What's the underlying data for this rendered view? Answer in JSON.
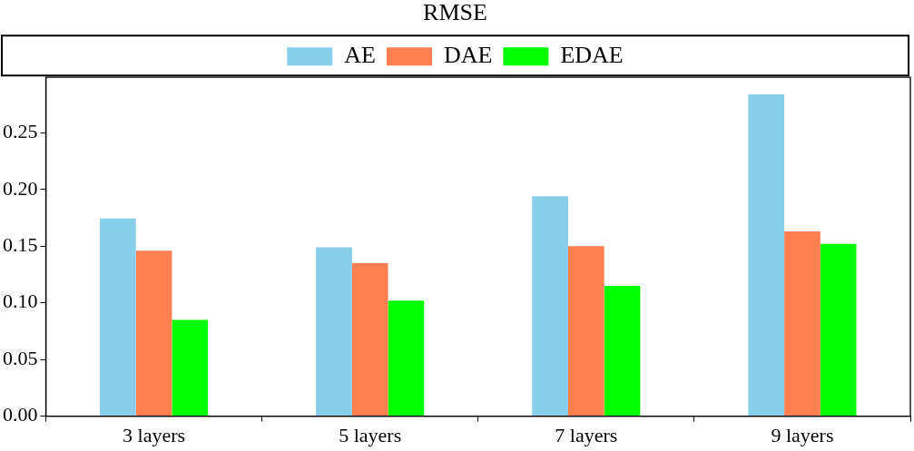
{
  "chart_data": {
    "type": "bar",
    "title": "RMSE",
    "categories": [
      "3 layers",
      "5 layers",
      "7 layers",
      "9 layers"
    ],
    "series": [
      {
        "name": "AE",
        "color": "#87ceeb",
        "values": [
          0.1745,
          0.149,
          0.194,
          0.284
        ]
      },
      {
        "name": "DAE",
        "color": "#ff7f50",
        "values": [
          0.146,
          0.135,
          0.15,
          0.163
        ]
      },
      {
        "name": "EDAE",
        "color": "#00ff00",
        "values": [
          0.085,
          0.102,
          0.115,
          0.152
        ]
      }
    ],
    "ylim": [
      0,
      0.299
    ],
    "yticks": [
      {
        "value": 0,
        "label": "0.00"
      },
      {
        "value": 0.05,
        "label": "0.05"
      },
      {
        "value": 0.1,
        "label": "0.10"
      },
      {
        "value": 0.15,
        "label": "0.15"
      },
      {
        "value": 0.2,
        "label": "0.20"
      },
      {
        "value": 0.25,
        "label": "0.25"
      }
    ],
    "grid": false,
    "legend": "top"
  }
}
